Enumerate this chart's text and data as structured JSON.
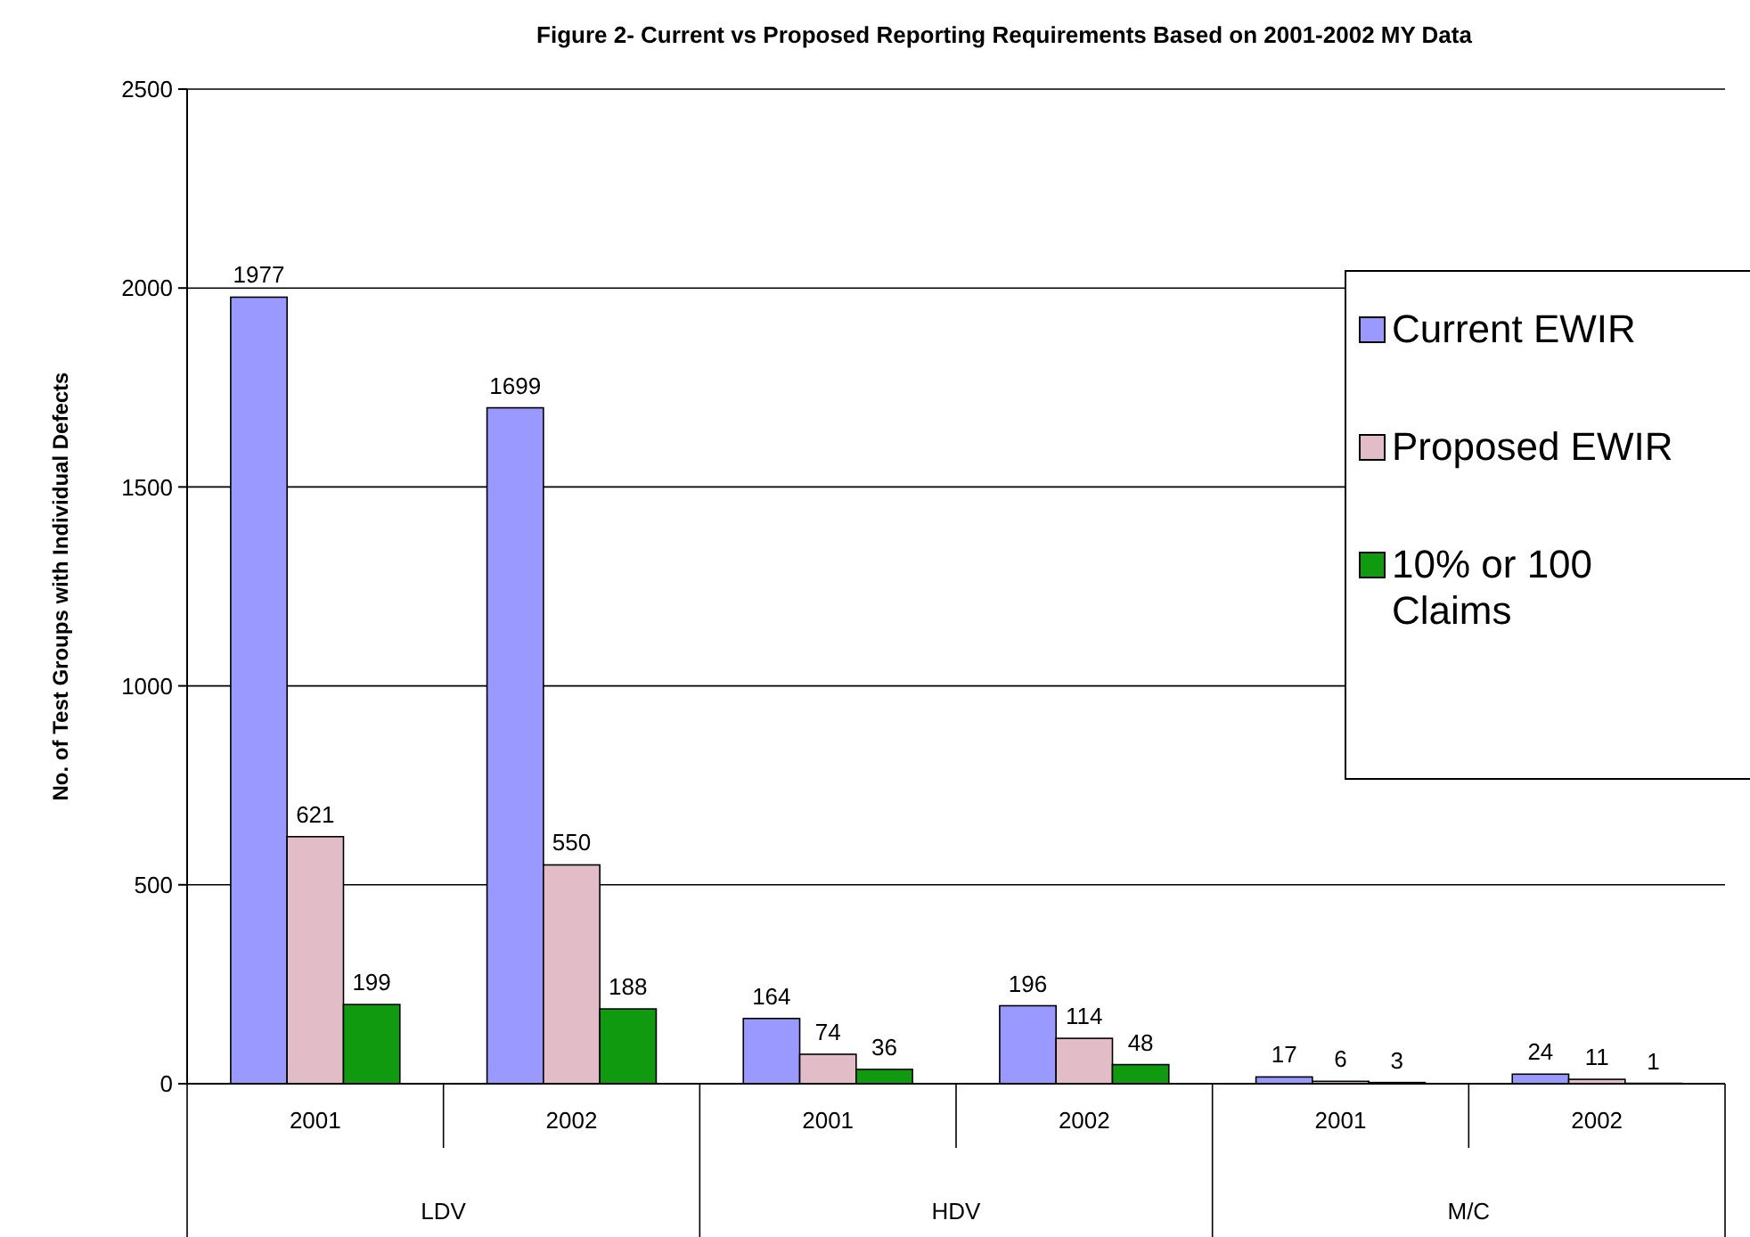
{
  "chart_data": {
    "type": "bar",
    "title": "Figure 2- Current vs Proposed Reporting Requirements Based on 2001-2002 MY Data",
    "ylabel": "No. of Test Groups with Individual Defects",
    "categories": [
      "2001",
      "2002",
      "2001",
      "2002",
      "2001",
      "2002"
    ],
    "annotations": [
      "LDV",
      "HDV",
      "M/C"
    ],
    "series": [
      {
        "name": "Current EWIR",
        "color": "#9999ff",
        "values": [
          1977,
          1699,
          164,
          196,
          17,
          24
        ]
      },
      {
        "name": "Proposed EWIR",
        "color": "#e2bcc6",
        "values": [
          621,
          550,
          74,
          114,
          6,
          11
        ]
      },
      {
        "name": "10% or 100 Claims",
        "color": "#109a10",
        "values": [
          199,
          188,
          36,
          48,
          3,
          1
        ]
      }
    ],
    "ylim": [
      0,
      2500
    ],
    "yticks": [
      0,
      500,
      1000,
      1500,
      2000,
      2500
    ],
    "grid": "y",
    "legend": "right",
    "data_labels": true
  }
}
